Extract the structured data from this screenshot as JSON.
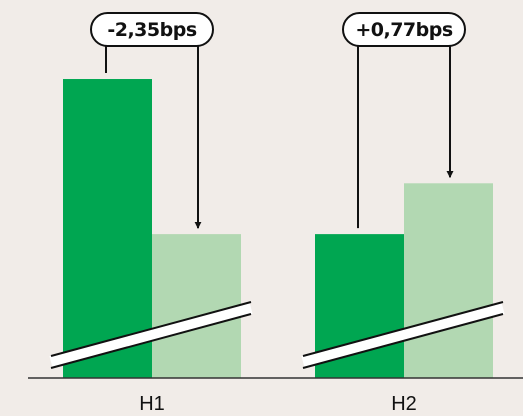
{
  "chart_data": {
    "type": "bar",
    "categories": [
      "H1",
      "H2"
    ],
    "series": [
      {
        "values": [
          4.53,
          2.18
        ],
        "color": "#00a651"
      },
      {
        "values": [
          2.18,
          2.95
        ],
        "color": "#b2d8b2"
      }
    ],
    "annotations": [
      {
        "category": "H1",
        "text": "-2,35bps",
        "direction": "down"
      },
      {
        "category": "H2",
        "text": "+0,77bps",
        "direction": "down"
      }
    ],
    "axis_break": true,
    "grid": false,
    "title": "",
    "xlabel": "",
    "ylabel": ""
  }
}
